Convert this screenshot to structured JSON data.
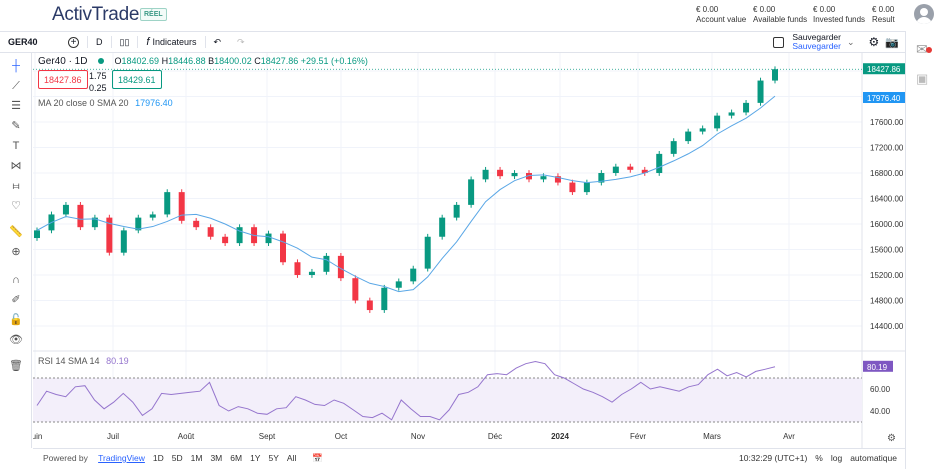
{
  "header": {
    "logo": "ActivTrader",
    "badge": "RÉEL",
    "stats": [
      {
        "value": "€ 0.00",
        "label": "Account value"
      },
      {
        "value": "€ 0.00",
        "label": "Available funds"
      },
      {
        "value": "€ 0.00",
        "label": "Invested funds"
      },
      {
        "value": "€ 0.00",
        "label": "Result"
      }
    ]
  },
  "toolbar": {
    "symbol": "GER40",
    "interval": "D",
    "indicators": "Indicateurs",
    "save_title": "Sauvegarder",
    "save_sub": "Sauvegarder"
  },
  "legend": {
    "title": "Ger40 · 1D",
    "o_label": "O",
    "o": "18402.69",
    "h_label": "H",
    "h": "18446.88",
    "b_label": "B",
    "b": "18400.02",
    "c_label": "C",
    "c": "18427.86",
    "change": "+29.51 (+0.16%)",
    "sell": "18427.86",
    "spread_top": "1.75",
    "spread_bottom": "0.25",
    "buy": "18429.61",
    "ma": "MA 20 close 0 SMA 20",
    "ma_value": "17976.40",
    "rsi": "RSI 14 SMA 14",
    "rsi_value": "80.19"
  },
  "colors": {
    "up": "#089981",
    "down": "#f23645",
    "ma": "#5aa7e6",
    "rsi": "#9575cd"
  },
  "chart_data": {
    "type": "candlestick",
    "price_ticks": [
      "17600.00",
      "17200.00",
      "16800.00",
      "16400.00",
      "16000.00",
      "15600.00",
      "15200.00",
      "14800.00",
      "14400.00"
    ],
    "last_price": "18427.86",
    "ma_last": "17976.40",
    "closes": [
      15900,
      16150,
      16300,
      15950,
      16100,
      15550,
      15900,
      16100,
      16150,
      16500,
      16050,
      15950,
      15800,
      15700,
      15950,
      15700,
      15850,
      15400,
      15200,
      15250,
      15500,
      15150,
      14800,
      14650,
      15000,
      15100,
      15300,
      15800,
      16100,
      16300,
      16700,
      16850,
      16750,
      16800,
      16700,
      16750,
      16650,
      16500,
      16650,
      16800,
      16900,
      16850,
      16800,
      17100,
      17300,
      17450,
      17500,
      17700,
      17750,
      17900,
      18250,
      18427.86
    ],
    "rsi_ticks": [
      "60.00",
      "40.00"
    ],
    "rsi_last": "80.19",
    "rsi_bands": [
      30,
      70
    ],
    "rsi": [
      45,
      58,
      55,
      53,
      62,
      63,
      50,
      42,
      48,
      56,
      48,
      36,
      42,
      56,
      55,
      56,
      57,
      58,
      66,
      45,
      40,
      44,
      42,
      38,
      37,
      42,
      43,
      53,
      50,
      46,
      45,
      50,
      47,
      41,
      35,
      34,
      38,
      32,
      50,
      42,
      35,
      35,
      32,
      41,
      55,
      57,
      62,
      73,
      74,
      73,
      79,
      83,
      85,
      83,
      73,
      70,
      65,
      60,
      57,
      53,
      48,
      55,
      60,
      66,
      60,
      62,
      60,
      58,
      62,
      64,
      73,
      78,
      72,
      75,
      71,
      76,
      78,
      80.19
    ],
    "x_labels": [
      "Juin",
      "Juil",
      "Août",
      "Sept",
      "Oct",
      "Nov",
      "Déc",
      "2024",
      "Févr",
      "Mars",
      "Avr"
    ]
  },
  "bottom": {
    "powered": "Powered by",
    "tv": "TradingView",
    "ranges": [
      "1D",
      "5D",
      "1M",
      "3M",
      "6M",
      "1Y",
      "5Y",
      "All"
    ],
    "time": "10:32:29 (UTC+1)",
    "pct": "%",
    "log": "log",
    "auto": "automatique"
  }
}
